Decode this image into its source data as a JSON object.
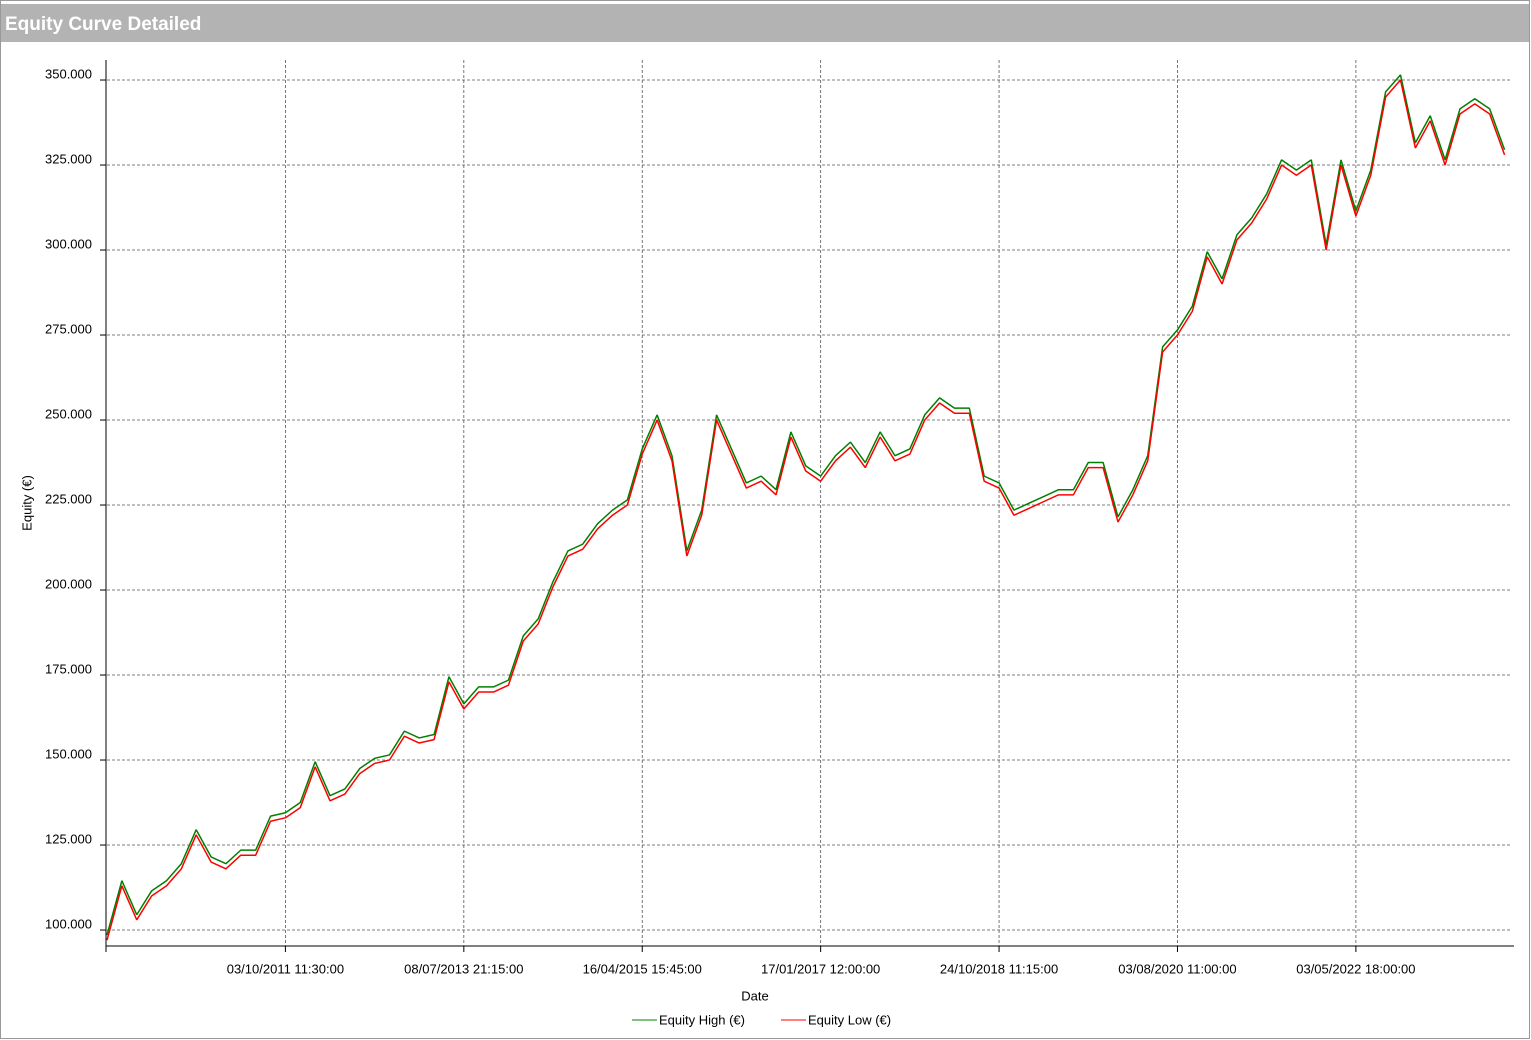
{
  "chart_data": {
    "type": "line",
    "title": "Equity Curve Detailed",
    "x_label": "Date",
    "y_label": "Equity (€)",
    "categories": [
      null,
      null,
      null,
      null,
      null,
      null,
      null,
      null,
      null,
      null,
      null,
      null,
      "03/10/2011 11:30:00",
      null,
      null,
      null,
      null,
      null,
      null,
      null,
      null,
      null,
      null,
      null,
      "08/07/2013 21:15:00",
      null,
      null,
      null,
      null,
      null,
      null,
      null,
      null,
      null,
      null,
      null,
      "16/04/2015 15:45:00",
      null,
      null,
      null,
      null,
      null,
      null,
      null,
      null,
      null,
      null,
      null,
      "17/01/2017 12:00:00",
      null,
      null,
      null,
      null,
      null,
      null,
      null,
      null,
      null,
      null,
      null,
      "24/10/2018 11:15:00",
      null,
      null,
      null,
      null,
      null,
      null,
      null,
      null,
      null,
      null,
      null,
      "03/08/2020 11:00:00",
      null,
      null,
      null,
      null,
      null,
      null,
      null,
      null,
      null,
      null,
      null,
      "03/05/2022 18:00:00",
      null,
      null,
      null,
      null,
      null,
      null,
      null,
      null,
      null,
      null
    ],
    "series": [
      {
        "name": "Equity High (€)",
        "color": "#008000",
        "values": [
          98500,
          114500,
          104500,
          111500,
          114500,
          119500,
          129500,
          121500,
          119500,
          123500,
          123500,
          133500,
          134500,
          137500,
          149500,
          139500,
          141500,
          147500,
          150500,
          151500,
          158500,
          156500,
          157500,
          174500,
          166500,
          171500,
          171500,
          173500,
          186500,
          191500,
          202500,
          211500,
          213500,
          219500,
          223500,
          226500,
          241500,
          251500,
          239500,
          211500,
          223500,
          251500,
          241500,
          231500,
          233500,
          229500,
          246500,
          236500,
          233500,
          239500,
          243500,
          237500,
          246500,
          239500,
          241500,
          251500,
          256500,
          253500,
          253500,
          233500,
          231500,
          223500,
          225500,
          227500,
          229500,
          229500,
          237500,
          237500,
          221500,
          229500,
          239500,
          271500,
          276500,
          283500,
          299500,
          291500,
          304500,
          309500,
          316500,
          326500,
          323500,
          326500,
          301500,
          326500,
          311500,
          323500,
          346500,
          351500,
          331500,
          339500,
          326500,
          341500,
          344500,
          341500,
          329500
        ]
      },
      {
        "name": "Equity Low (€)",
        "color": "#ff0000",
        "values": [
          97000,
          113000,
          103000,
          110000,
          113000,
          118000,
          128000,
          120000,
          118000,
          122000,
          122000,
          132000,
          133000,
          136000,
          148000,
          138000,
          140000,
          146000,
          149000,
          150000,
          157000,
          155000,
          156000,
          173000,
          165000,
          170000,
          170000,
          172000,
          185000,
          190000,
          201000,
          210000,
          212000,
          218000,
          222000,
          225000,
          240000,
          250000,
          238000,
          210000,
          222000,
          250000,
          240000,
          230000,
          232000,
          228000,
          245000,
          235000,
          232000,
          238000,
          242000,
          236000,
          245000,
          238000,
          240000,
          250000,
          255000,
          252000,
          252000,
          232000,
          230000,
          222000,
          224000,
          226000,
          228000,
          228000,
          236000,
          236000,
          220000,
          228000,
          238000,
          270000,
          275000,
          282000,
          298000,
          290000,
          303000,
          308000,
          315000,
          325000,
          322000,
          325000,
          300000,
          325000,
          310000,
          322000,
          345000,
          350000,
          330000,
          338000,
          325000,
          340000,
          343000,
          340000,
          328000
        ]
      }
    ],
    "ylim": [
      95300,
      355300
    ],
    "yticks": [
      {
        "value": 100000,
        "label": "100.000"
      },
      {
        "value": 125000,
        "label": "125.000"
      },
      {
        "value": 150000,
        "label": "150.000"
      },
      {
        "value": 175000,
        "label": "175.000"
      },
      {
        "value": 200000,
        "label": "200.000"
      },
      {
        "value": 225000,
        "label": "225.000"
      },
      {
        "value": 250000,
        "label": "250.000"
      },
      {
        "value": 275000,
        "label": "275.000"
      },
      {
        "value": 300000,
        "label": "300.000"
      },
      {
        "value": 325000,
        "label": "325.000"
      },
      {
        "value": 350000,
        "label": "350.000"
      }
    ],
    "grid": true,
    "legend": "bottom"
  }
}
